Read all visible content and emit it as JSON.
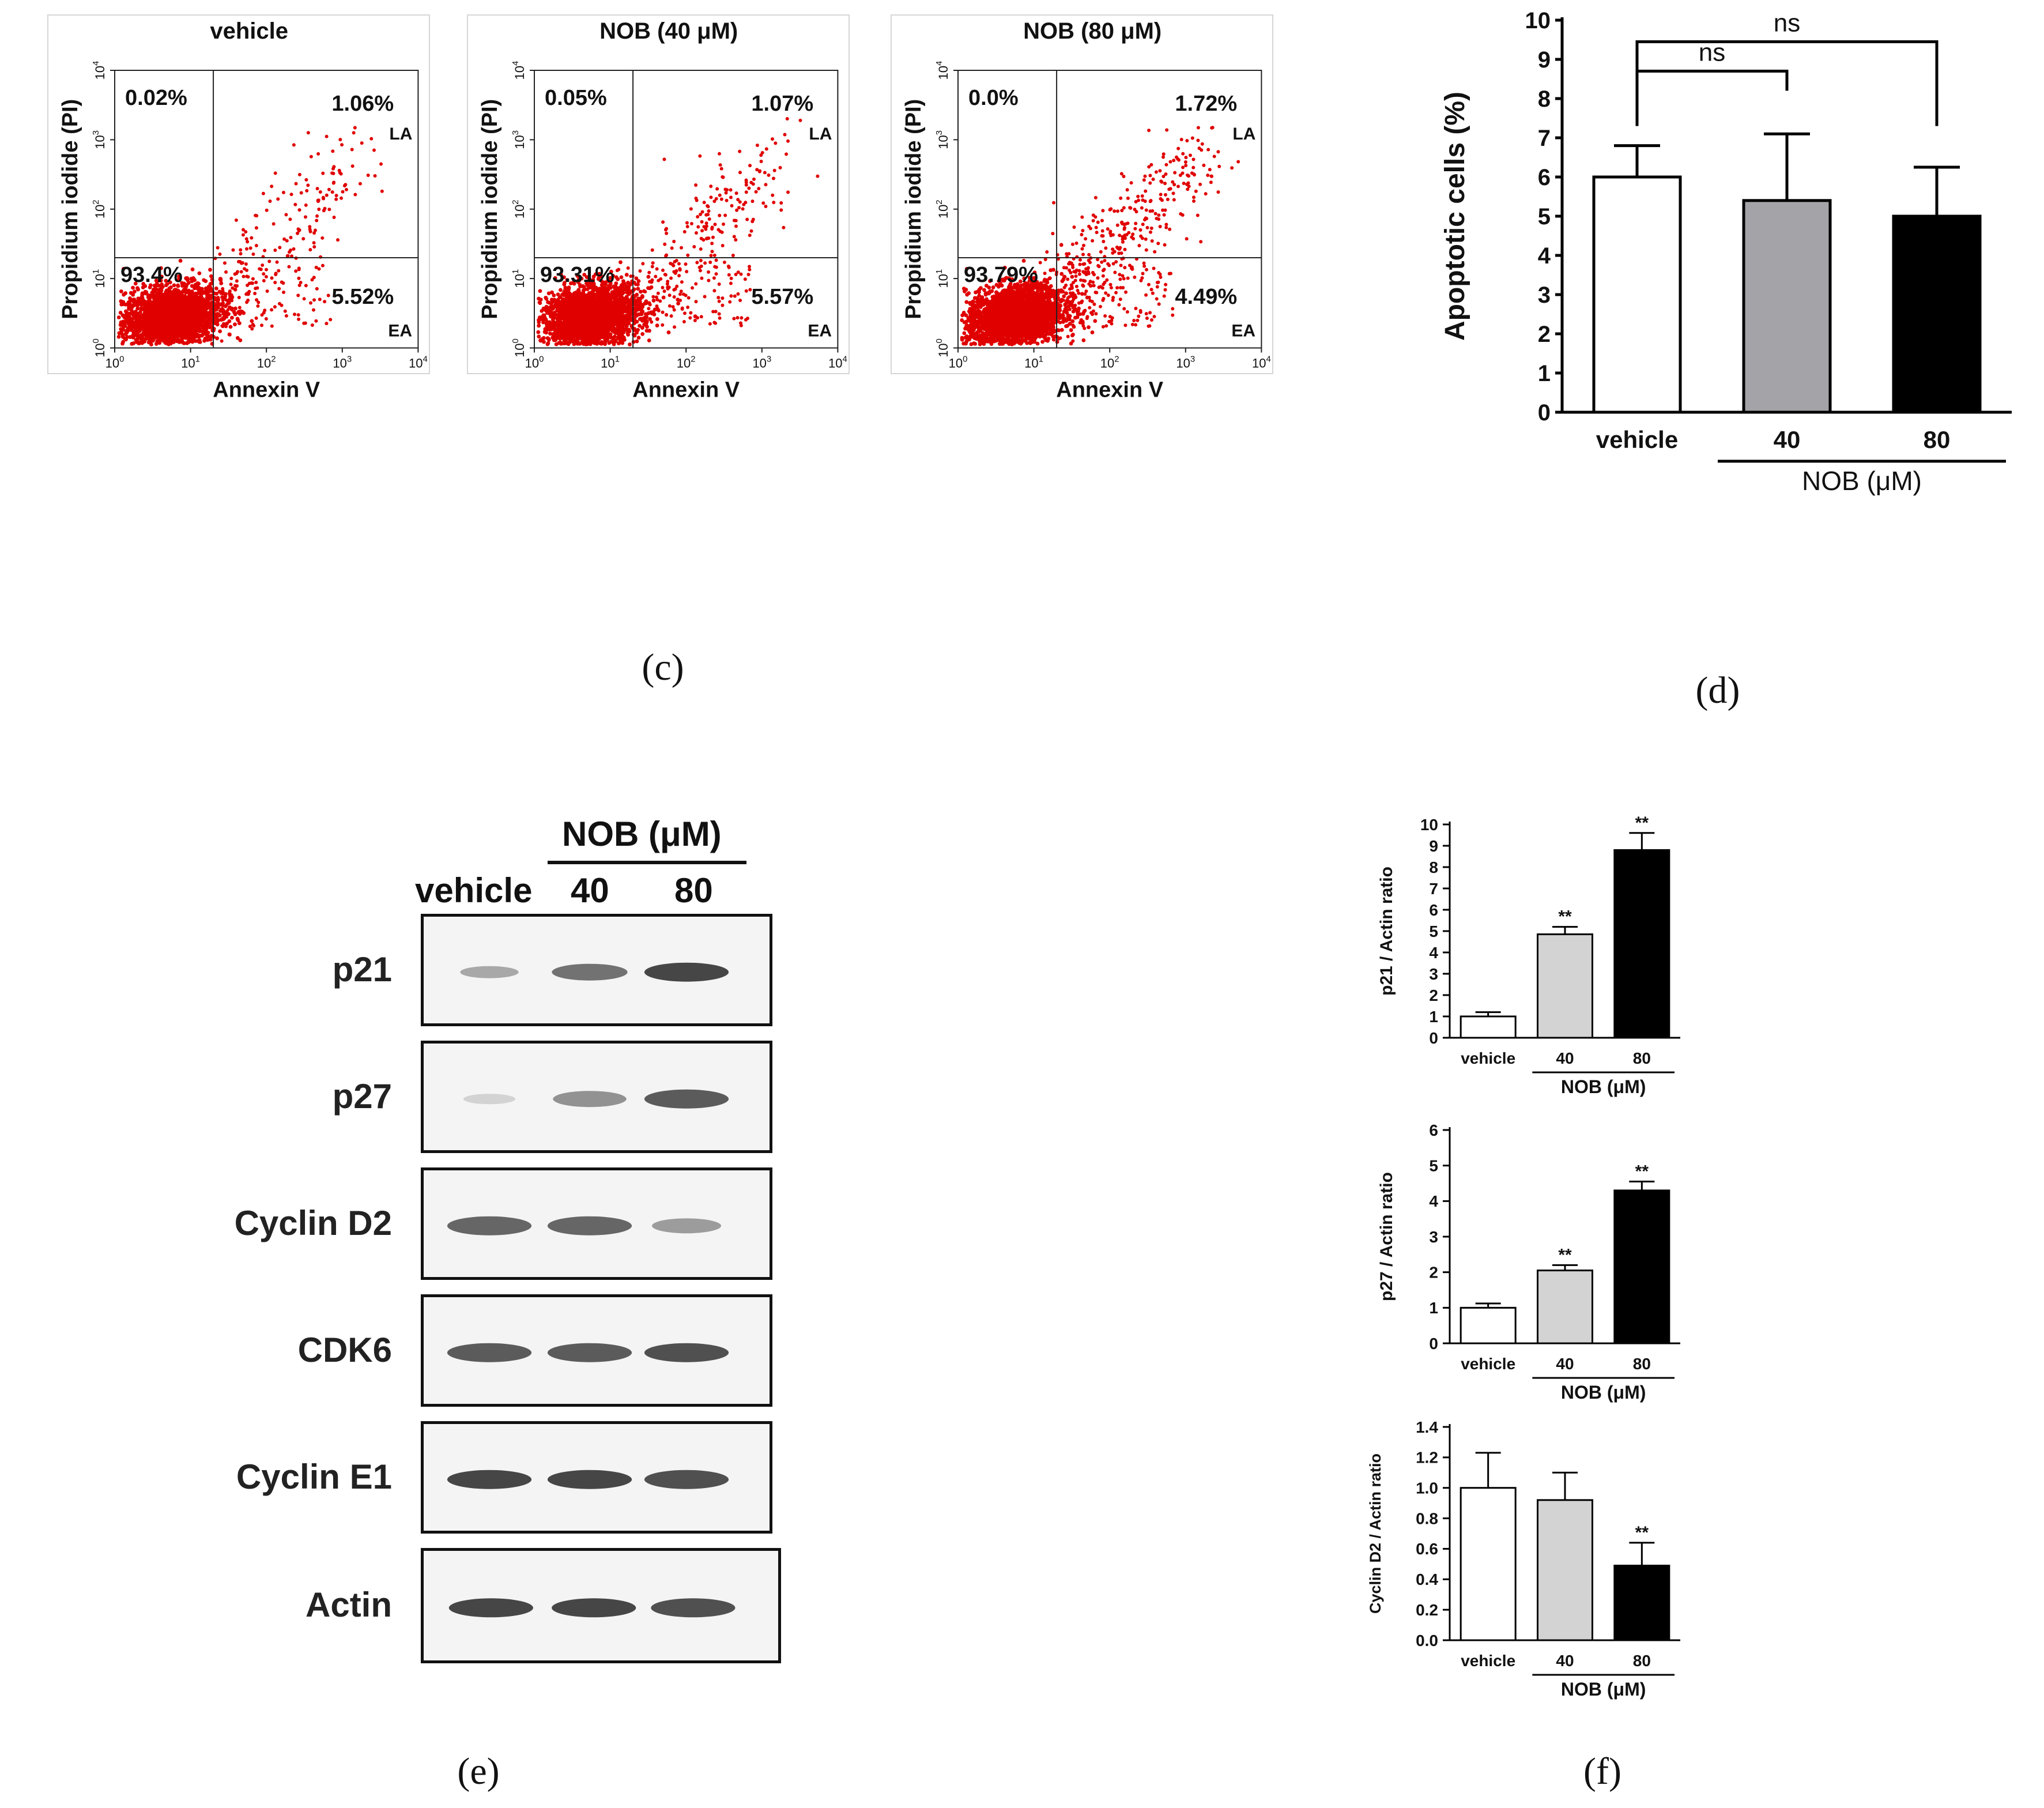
{
  "flow_plots": [
    {
      "title": "vehicle",
      "ul": "0.02%",
      "ur": "1.06%",
      "ll": "93.4%",
      "lr": "5.52%",
      "la_tag": "LA",
      "ea_tag": "EA",
      "xlabel": "Annexin V",
      "ylabel": "Propidium iodide (PI)",
      "x_ticks": [
        "10^0",
        "10^1",
        "10^2",
        "10^3",
        "10^4"
      ],
      "y_ticks": [
        "10^0",
        "10^1",
        "10^2",
        "10^3",
        "10^4"
      ]
    },
    {
      "title": "NOB (40 μM)",
      "ul": "0.05%",
      "ur": "1.07%",
      "ll": "93.31%",
      "lr": "5.57%",
      "la_tag": "LA",
      "ea_tag": "EA",
      "xlabel": "Annexin V",
      "ylabel": "Propidium iodide (PI)",
      "x_ticks": [
        "10^0",
        "10^1",
        "10^2",
        "10^3",
        "10^4"
      ],
      "y_ticks": [
        "10^0",
        "10^1",
        "10^2",
        "10^3",
        "10^4"
      ]
    },
    {
      "title": "NOB (80 μM)",
      "ul": "0.0%",
      "ur": "1.72%",
      "ll": "93.79%",
      "lr": "4.49%",
      "la_tag": "LA",
      "ea_tag": "EA",
      "xlabel": "Annexin V",
      "ylabel": "Propidium iodide (PI)",
      "x_ticks": [
        "10^0",
        "10^1",
        "10^2",
        "10^3",
        "10^4"
      ],
      "y_ticks": [
        "10^0",
        "10^1",
        "10^2",
        "10^3",
        "10^4"
      ]
    }
  ],
  "panel_labels": {
    "c": "(c)",
    "d": "(d)",
    "e": "(e)",
    "f": "(f)"
  },
  "western_blot": {
    "group_label": "NOB (μM)",
    "lane_labels": [
      "vehicle",
      "40",
      "80"
    ],
    "proteins": [
      "p21",
      "p27",
      "Cyclin D2",
      "CDK6",
      "Cyclin E1",
      "Actin"
    ]
  },
  "colors": {
    "dots": "#e00000",
    "bar_vehicle": "#ffffff",
    "bar_40_d": "#a3a3a8",
    "bar_40_f": "#d3d3d3",
    "bar_80": "#000000"
  },
  "chart_data": [
    {
      "type": "bar",
      "panel": "d",
      "categories": [
        "vehicle",
        "40",
        "80"
      ],
      "values": [
        6.0,
        5.4,
        5.0
      ],
      "errors": [
        0.8,
        1.7,
        1.25
      ],
      "ylabel": "Apoptotic cells (%)",
      "ylim": [
        0,
        10
      ],
      "yticks": [
        "0",
        "1",
        "2",
        "3",
        "4",
        "5",
        "6",
        "7",
        "8",
        "9",
        "10"
      ],
      "group_label": "NOB (μM)",
      "significance": [
        {
          "from": "vehicle",
          "to": "40",
          "label": "ns"
        },
        {
          "from": "vehicle",
          "to": "80",
          "label": "ns"
        }
      ]
    },
    {
      "type": "bar",
      "panel": "f",
      "categories": [
        "vehicle",
        "40",
        "80"
      ],
      "values": [
        1.0,
        4.85,
        8.8
      ],
      "errors": [
        0.2,
        0.35,
        0.8
      ],
      "ylabel": "p21 / Actin ratio",
      "ylim": [
        0,
        10
      ],
      "yticks": [
        "0",
        "1",
        "2",
        "3",
        "4",
        "5",
        "6",
        "7",
        "8",
        "9",
        "10"
      ],
      "group_label": "NOB (μM)",
      "stars": [
        "",
        "**",
        "**"
      ]
    },
    {
      "type": "bar",
      "panel": "f",
      "categories": [
        "vehicle",
        "40",
        "80"
      ],
      "values": [
        1.0,
        2.05,
        4.3
      ],
      "errors": [
        0.12,
        0.15,
        0.25
      ],
      "ylabel": "p27 / Actin ratio",
      "ylim": [
        0,
        6
      ],
      "yticks": [
        "0",
        "1",
        "2",
        "3",
        "4",
        "5",
        "6"
      ],
      "group_label": "NOB (μM)",
      "stars": [
        "",
        "**",
        "**"
      ]
    },
    {
      "type": "bar",
      "panel": "f",
      "categories": [
        "vehicle",
        "40",
        "80"
      ],
      "values": [
        1.0,
        0.92,
        0.49
      ],
      "errors": [
        0.23,
        0.18,
        0.15
      ],
      "ylabel": "Cyclin D2 / Actin ratio",
      "ylim": [
        0,
        1.4
      ],
      "yticks": [
        "0.0",
        "0.2",
        "0.4",
        "0.6",
        "0.8",
        "1.0",
        "1.2",
        "1.4"
      ],
      "group_label": "NOB (μM)",
      "stars": [
        "",
        "",
        "**"
      ]
    }
  ]
}
